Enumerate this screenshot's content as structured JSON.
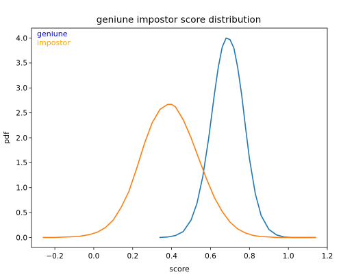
{
  "chart_data": {
    "type": "line",
    "title": "geniune impostor score distribution",
    "xlabel": "score",
    "ylabel": "pdf",
    "xlim": [
      -0.32,
      1.2
    ],
    "ylim": [
      -0.2,
      4.2
    ],
    "x_ticks": [
      -0.2,
      0.0,
      0.2,
      0.4,
      0.6,
      0.8,
      1.0,
      1.2
    ],
    "x_tick_labels": [
      "−0.2",
      "0.0",
      "0.2",
      "0.4",
      "0.6",
      "0.8",
      "1.0",
      "1.2"
    ],
    "y_ticks": [
      0.0,
      0.5,
      1.0,
      1.5,
      2.0,
      2.5,
      3.0,
      3.5,
      4.0
    ],
    "y_tick_labels": [
      "0.0",
      "0.5",
      "1.0",
      "1.5",
      "2.0",
      "2.5",
      "3.0",
      "3.5",
      "4.0"
    ],
    "grid": false,
    "legend_placement": "top-left",
    "series": [
      {
        "name": "geniune",
        "color": "#1f77b4",
        "legend_text_color": "#0000ff",
        "x": [
          0.34,
          0.38,
          0.42,
          0.46,
          0.5,
          0.53,
          0.56,
          0.59,
          0.62,
          0.64,
          0.66,
          0.68,
          0.7,
          0.72,
          0.74,
          0.76,
          0.78,
          0.8,
          0.83,
          0.86,
          0.9,
          0.94,
          0.98,
          1.02,
          1.06,
          1.1,
          1.14
        ],
        "y": [
          0.0,
          0.01,
          0.04,
          0.12,
          0.35,
          0.68,
          1.22,
          1.98,
          2.88,
          3.42,
          3.82,
          4.0,
          3.97,
          3.8,
          3.4,
          2.86,
          2.2,
          1.58,
          0.88,
          0.44,
          0.16,
          0.05,
          0.01,
          0.0,
          0.0,
          0.0,
          0.0
        ]
      },
      {
        "name": "impostor",
        "color": "#ff7f0e",
        "legend_text_color": "#ffa500",
        "x": [
          -0.26,
          -0.2,
          -0.14,
          -0.08,
          -0.02,
          0.02,
          0.06,
          0.1,
          0.14,
          0.18,
          0.22,
          0.26,
          0.3,
          0.34,
          0.38,
          0.4,
          0.42,
          0.46,
          0.5,
          0.54,
          0.58,
          0.62,
          0.66,
          0.7,
          0.74,
          0.78,
          0.82,
          0.86,
          0.9,
          0.94,
          1.0,
          1.06,
          1.14
        ],
        "y": [
          0.0,
          0.0,
          0.01,
          0.02,
          0.06,
          0.11,
          0.2,
          0.35,
          0.6,
          0.92,
          1.38,
          1.88,
          2.3,
          2.57,
          2.67,
          2.67,
          2.62,
          2.36,
          2.0,
          1.58,
          1.17,
          0.8,
          0.52,
          0.31,
          0.17,
          0.09,
          0.04,
          0.02,
          0.01,
          0.0,
          0.0,
          0.0,
          0.0
        ]
      }
    ]
  }
}
